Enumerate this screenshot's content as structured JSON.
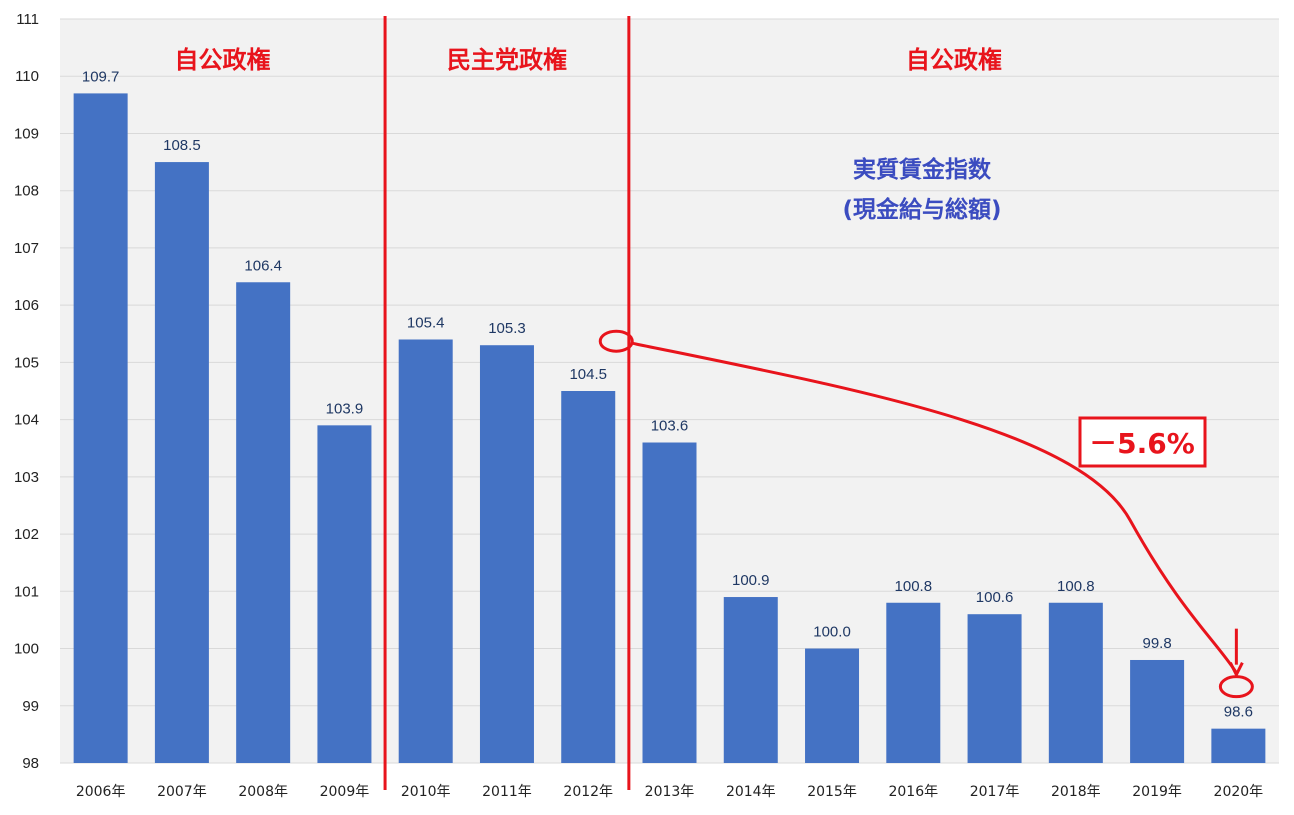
{
  "chart_data": {
    "type": "bar",
    "categories": [
      "2006年",
      "2007年",
      "2008年",
      "2009年",
      "2010年",
      "2011年",
      "2012年",
      "2013年",
      "2014年",
      "2015年",
      "2016年",
      "2017年",
      "2018年",
      "2019年",
      "2020年"
    ],
    "values": [
      109.7,
      108.5,
      106.4,
      103.9,
      105.4,
      105.3,
      104.5,
      103.6,
      100.9,
      100.0,
      100.8,
      100.6,
      100.8,
      99.8,
      98.6
    ],
    "value_labels": [
      "109.7",
      "108.5",
      "106.4",
      "103.9",
      "105.4",
      "105.3",
      "104.5",
      "103.6",
      "100.9",
      "100.0",
      "100.8",
      "100.6",
      "100.8",
      "99.8",
      "98.6"
    ],
    "ylim": [
      98,
      111
    ],
    "yticks": [
      98,
      99,
      100,
      101,
      102,
      103,
      104,
      105,
      106,
      107,
      108,
      109,
      110,
      111
    ],
    "title_line1": "実質賃金指数",
    "title_line2": "(現金給与総額)",
    "grid": true,
    "bar_color": "#4472c4",
    "annotations": {
      "eras": [
        {
          "label": "自公政権",
          "first": 0,
          "last": 3
        },
        {
          "label": "民主党政権",
          "first": 4,
          "last": 6
        },
        {
          "label": "自公政権",
          "first": 7,
          "last": 14
        }
      ],
      "dividers_after_index": [
        3,
        6
      ],
      "change_label": "－5.6%",
      "change_from_index": 6,
      "change_to_index": 14,
      "accent_color": "#e8141c",
      "title_color": "#3b4cc0"
    }
  }
}
